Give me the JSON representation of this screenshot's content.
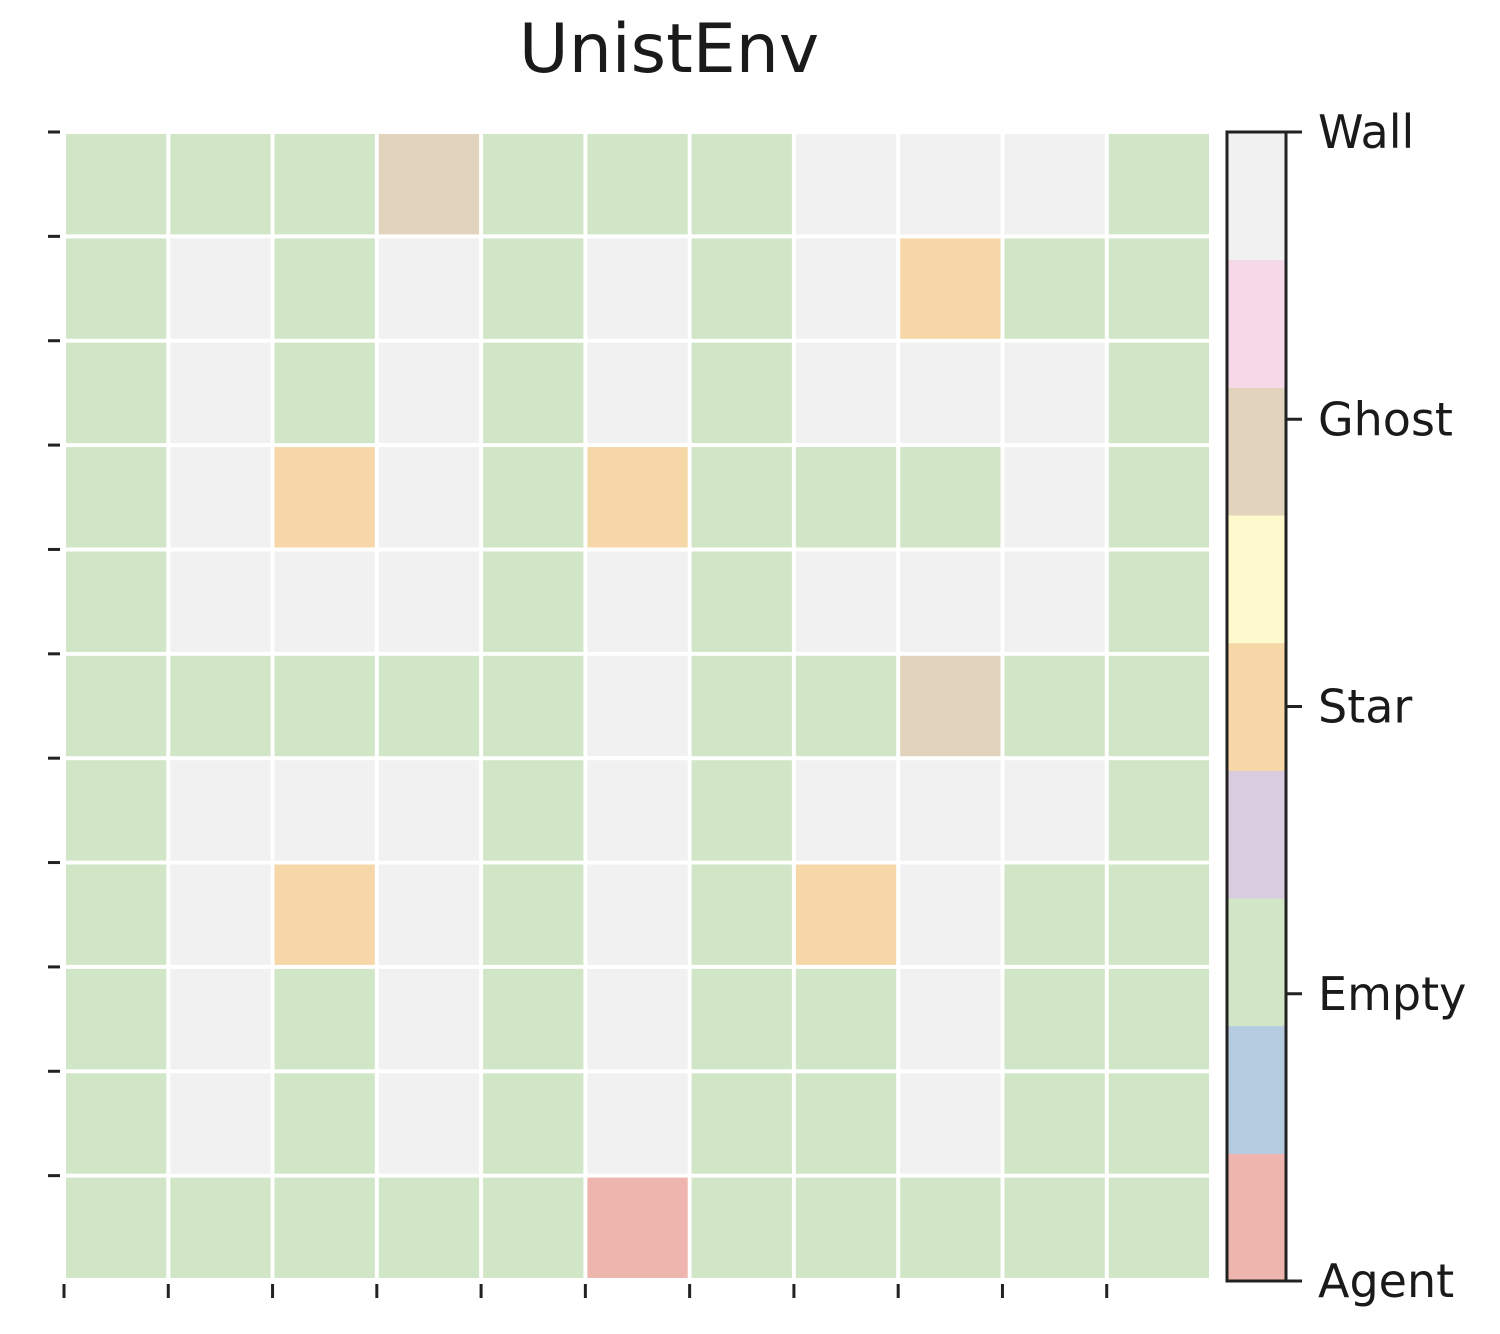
{
  "title": "UnistEnv",
  "legend": {
    "labels": [
      "Agent",
      "Empty",
      "Star",
      "Ghost",
      "Wall"
    ]
  },
  "palette": {
    "agent": "#edb5ae",
    "c1": "#b5cbe0",
    "empty": "#d1e6c6",
    "c3": "#d9cbe0",
    "star": "#f6d8a8",
    "c5": "#fefacd",
    "ghost": "#e2d4bc",
    "c7": "#f6d8e9",
    "wall": "#f1f1f1"
  },
  "colorbar_order": [
    "agent",
    "c1",
    "empty",
    "c3",
    "star",
    "c5",
    "ghost",
    "c7",
    "wall"
  ],
  "grid": [
    [
      "empty",
      "empty",
      "empty",
      "ghost",
      "empty",
      "empty",
      "empty",
      "wall",
      "wall",
      "wall",
      "empty"
    ],
    [
      "empty",
      "wall",
      "empty",
      "wall",
      "empty",
      "wall",
      "empty",
      "wall",
      "star",
      "empty",
      "empty"
    ],
    [
      "empty",
      "wall",
      "empty",
      "wall",
      "empty",
      "wall",
      "empty",
      "wall",
      "wall",
      "wall",
      "empty"
    ],
    [
      "empty",
      "wall",
      "star",
      "wall",
      "empty",
      "star",
      "empty",
      "empty",
      "empty",
      "wall",
      "empty"
    ],
    [
      "empty",
      "wall",
      "wall",
      "wall",
      "empty",
      "wall",
      "empty",
      "wall",
      "wall",
      "wall",
      "empty"
    ],
    [
      "empty",
      "empty",
      "empty",
      "empty",
      "empty",
      "wall",
      "empty",
      "empty",
      "ghost",
      "empty",
      "empty"
    ],
    [
      "empty",
      "wall",
      "wall",
      "wall",
      "empty",
      "wall",
      "empty",
      "wall",
      "wall",
      "wall",
      "empty"
    ],
    [
      "empty",
      "wall",
      "star",
      "wall",
      "empty",
      "wall",
      "empty",
      "star",
      "wall",
      "empty",
      "empty"
    ],
    [
      "empty",
      "wall",
      "empty",
      "wall",
      "empty",
      "wall",
      "empty",
      "empty",
      "wall",
      "empty",
      "empty"
    ],
    [
      "empty",
      "wall",
      "empty",
      "wall",
      "empty",
      "wall",
      "empty",
      "empty",
      "wall",
      "empty",
      "empty"
    ],
    [
      "empty",
      "empty",
      "empty",
      "empty",
      "empty",
      "agent",
      "empty",
      "empty",
      "empty",
      "empty",
      "empty"
    ]
  ]
}
